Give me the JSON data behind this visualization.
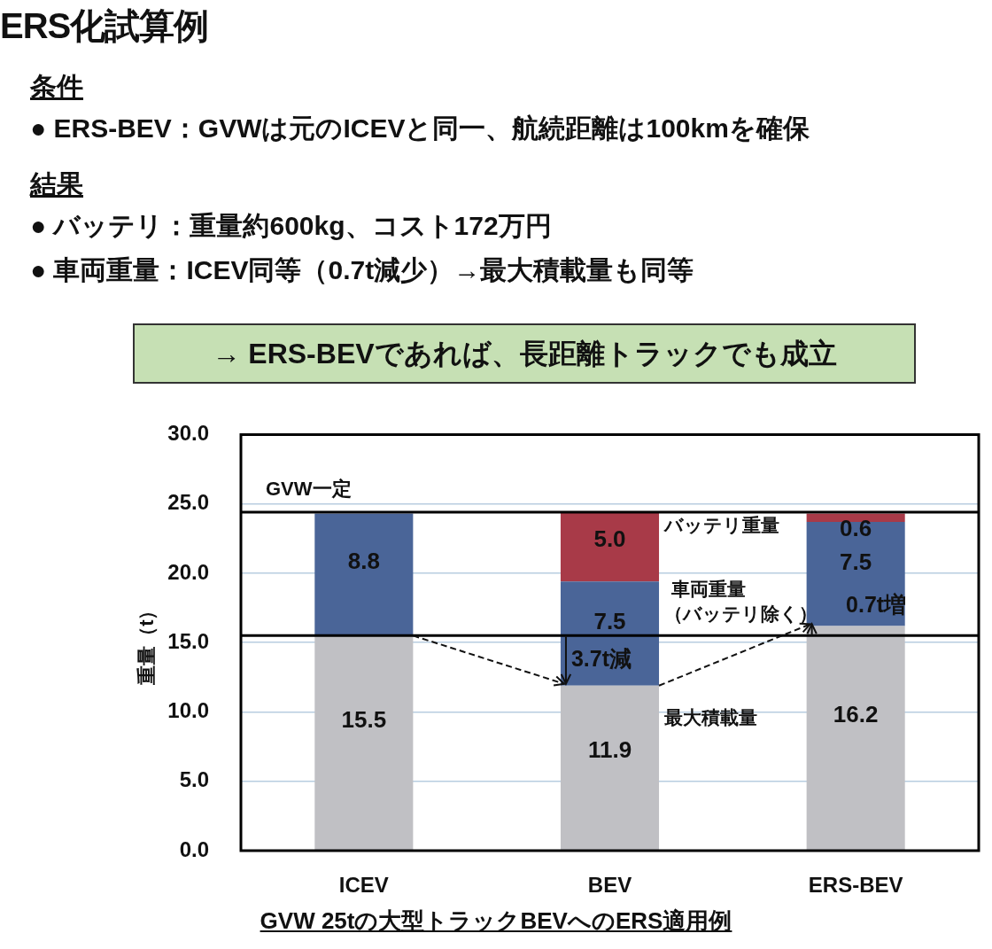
{
  "chart_data": {
    "type": "bar",
    "title": "ERS化試算例",
    "annotations": [
      "条件",
      "● ERS-BEV：GVWは元のICEVと同一、航続距離は100kmを確保",
      "結果",
      "● バッテリ：重量約600kg、コスト172万円",
      "● 車両重量：ICEV同等（0.7t減少）→最大積載量も同等",
      "→ ERS-BEVであれば、長距離トラックでも成立",
      {
        "text": "3.7t減",
        "x": "BEV",
        "y": 11.9
      },
      {
        "text": "0.7t増",
        "x": "ERS-BEV",
        "y": 16.2
      }
    ],
    "xlabel": "GVW 25tの大型トラックBEVへのERS適用例",
    "ylabel": "重量（t）",
    "categories": [
      "ICEV",
      "BEV",
      "ERS-BEV"
    ],
    "stacked": true,
    "series": [
      {
        "name": "最大積載量",
        "color": "#c0c0c4",
        "values": [
          15.5,
          11.9,
          16.2
        ],
        "value_labels": [
          "15.5",
          "11.9",
          "16.2"
        ]
      },
      {
        "name": "車両重量（バッテリ除く）",
        "color": "#4a6598",
        "values": [
          8.8,
          7.5,
          7.5
        ],
        "value_labels": [
          "8.8",
          "7.5",
          "7.5"
        ]
      },
      {
        "name": "バッテリ重量",
        "color": "#a83a48",
        "values": [
          null,
          5.0,
          0.6
        ],
        "value_labels": [
          null,
          "5.0",
          "0.6"
        ]
      }
    ],
    "ylim": [
      0,
      30
    ],
    "yticks": [
      {
        "value": 0,
        "label": "0.0"
      },
      {
        "value": 5,
        "label": "5.0"
      },
      {
        "value": 10,
        "label": "10.0"
      },
      {
        "value": 15,
        "label": "15.0"
      },
      {
        "value": 20,
        "label": "20.0"
      },
      {
        "value": 25,
        "label": "25.0"
      },
      {
        "value": 30,
        "label": "30.0"
      }
    ],
    "ref_lines": [
      {
        "axis": "y",
        "value": 24.4,
        "label": "GVW一定",
        "color": "#000000"
      },
      {
        "axis": "y",
        "value": 15.5,
        "color": "#000000"
      }
    ],
    "grid": "y",
    "legend": false
  }
}
